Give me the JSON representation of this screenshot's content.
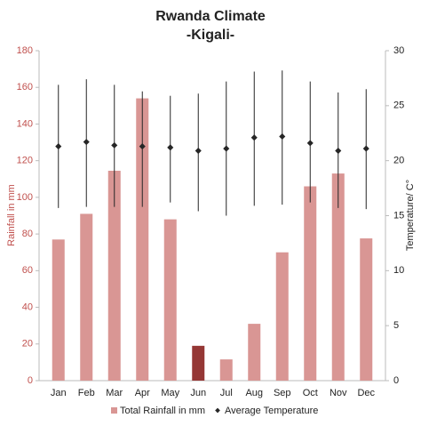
{
  "chart_data": {
    "type": "bar-errorline",
    "title": "Rwanda Climate",
    "subtitle": "-Kigali-",
    "categories": [
      "Jan",
      "Feb",
      "Mar",
      "Apr",
      "May",
      "Jun",
      "Jul",
      "Aug",
      "Sep",
      "Oct",
      "Nov",
      "Dec"
    ],
    "y_label": "Rainfall in mm",
    "y2_label": "Temperature/ C°",
    "ylim": [
      0,
      180
    ],
    "yticks": [
      0,
      20,
      40,
      60,
      80,
      100,
      120,
      140,
      160,
      180
    ],
    "y2lim": [
      0,
      30
    ],
    "y2ticks": [
      0,
      5,
      10,
      15,
      20,
      25,
      30
    ],
    "series": [
      {
        "name": "Total Rainfall in mm",
        "color": "#d99694",
        "colors": [
          "#d99694",
          "#d99694",
          "#d99694",
          "#d99694",
          "#d99694",
          "#953735",
          "#d99694",
          "#d99694",
          "#d99694",
          "#d99694",
          "#d99694",
          "#d99694"
        ],
        "values": [
          77,
          91,
          114.5,
          154,
          88,
          19,
          11.6,
          31,
          70,
          106,
          113,
          77.6
        ]
      },
      {
        "name": "Average Temperature",
        "color": "#262626",
        "axis": "y2",
        "values": [
          21.3,
          21.7,
          21.4,
          21.3,
          21.2,
          20.9,
          21.1,
          22.1,
          22.2,
          21.6,
          20.9,
          21.1
        ],
        "min": [
          15.7,
          15.8,
          15.8,
          15.8,
          16.2,
          15.4,
          15.0,
          15.9,
          16.0,
          16.2,
          15.7,
          15.6
        ],
        "max": [
          26.9,
          27.4,
          26.9,
          26.3,
          25.9,
          26.1,
          27.2,
          28.1,
          28.2,
          27.2,
          26.2,
          26.5
        ]
      }
    ]
  }
}
